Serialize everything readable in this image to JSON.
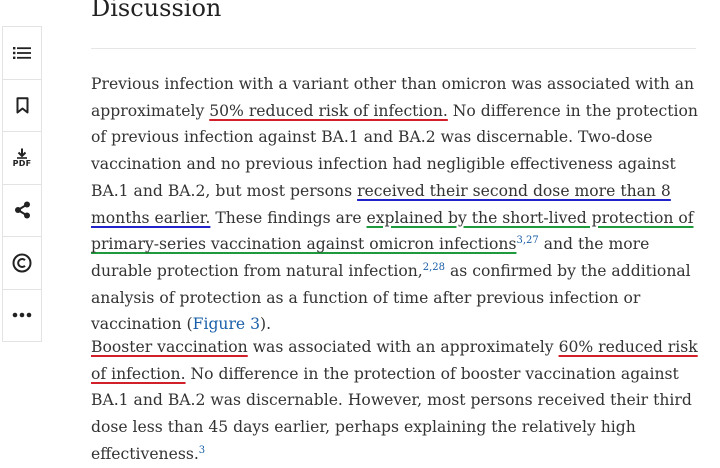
{
  "sidebar": {
    "items": [
      {
        "name": "outline",
        "icon": "list-icon"
      },
      {
        "name": "save",
        "icon": "bookmark-icon"
      },
      {
        "name": "pdf",
        "icon": "download-icon",
        "label": "PDF"
      },
      {
        "name": "share",
        "icon": "share-icon"
      },
      {
        "name": "permissions",
        "icon": "copyright-icon"
      },
      {
        "name": "more",
        "icon": "more-icon"
      }
    ]
  },
  "section": {
    "title": "Discussion"
  },
  "annotation_colors": {
    "red": "#d2202a",
    "blue": "#1f23c9",
    "green": "#1d9a3c"
  },
  "p1": {
    "t1": "Previous infection with a variant other than omicron was associated with an approximately ",
    "u1": "50% reduced risk of infection.",
    "t2": " No difference in the protection of previous infection against BA.1 and BA.2 was discernable. Two-dose vaccination and no previous infection had negligible effectiveness against BA.1 and BA.2, but most persons ",
    "u2": "received their second dose more than 8 months earlier.",
    "t3": " These findings are ",
    "u3": "explained by the short-lived protection of primary-series vaccination against omicron infections",
    "ref1": "3,27",
    "t4": " and the more durable protection from natural infection,",
    "ref2": "2,28",
    "t5": " as confirmed by the additional analysis of protection as a function of time after previous infection or vaccination (",
    "fig": "Figure 3",
    "t6": ")."
  },
  "p2": {
    "u1": "Booster vaccination",
    "t1": " was associated with an approximately ",
    "u2": "60% reduced risk of infection.",
    "t2": " No difference in the protection of booster vaccination against BA.1 and BA.2 was discernable. However, most persons received their third dose less than 45 days earlier, perhaps explaining the relatively high effectiveness.",
    "ref1": "3"
  }
}
